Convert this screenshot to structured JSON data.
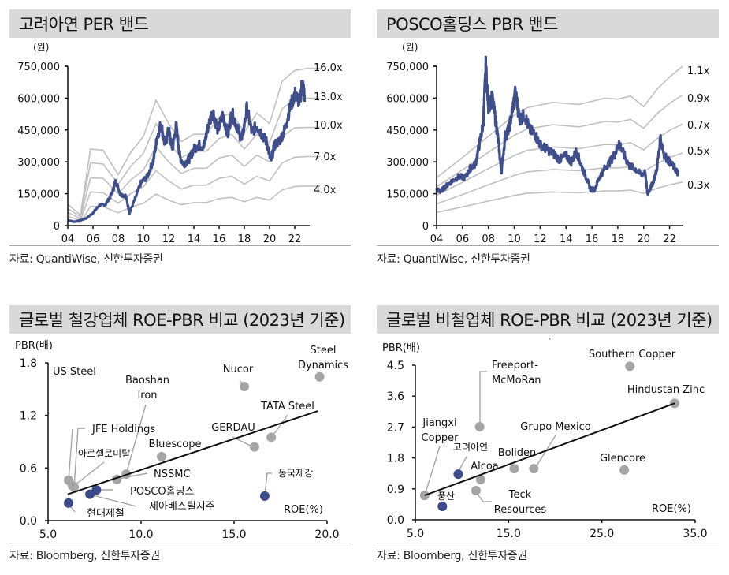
{
  "colors": {
    "price": "#3f4f8b",
    "band": "#c0c0c0",
    "gray_dot": "#a5a5a5",
    "navy_dot": "#3a4a8a",
    "title_bg": "#d9d9d9"
  },
  "chart_data": [
    {
      "type": "line",
      "title": "고려아연 PER 밴드",
      "unit_label": "(원)",
      "source": "자료: QuantiWise, 신한투자증권",
      "ylim": [
        0,
        750000
      ],
      "yticks": [
        0,
        150000,
        300000,
        450000,
        600000,
        750000
      ],
      "ytick_labels": [
        "0",
        "150,000",
        "300,000",
        "450,000",
        "600,000",
        "750,000"
      ],
      "xlim": [
        2004,
        2024
      ],
      "xticks": [
        2004,
        2006,
        2008,
        2010,
        2012,
        2014,
        2016,
        2018,
        2020,
        2022
      ],
      "xtick_labels": [
        "04",
        "06",
        "08",
        "10",
        "12",
        "14",
        "16",
        "18",
        "20",
        "22"
      ],
      "bands": [
        {
          "name": "16.0x",
          "x": [
            2004,
            2005,
            2005.8,
            2006.8,
            2008,
            2009,
            2010,
            2011,
            2012,
            2013,
            2014,
            2015,
            2016,
            2017,
            2018,
            2019,
            2020,
            2021,
            2022,
            2023,
            2024
          ],
          "y": [
            100000,
            50000,
            360000,
            355000,
            240000,
            345000,
            420000,
            590000,
            480000,
            395000,
            430000,
            430000,
            510000,
            530000,
            440000,
            530000,
            480000,
            680000,
            730000,
            740000,
            740000
          ]
        },
        {
          "name": "13.0x",
          "x": [
            2004,
            2005,
            2005.8,
            2006.8,
            2008,
            2009,
            2010,
            2011,
            2012,
            2013,
            2014,
            2015,
            2016,
            2017,
            2018,
            2019,
            2020,
            2021,
            2022,
            2023,
            2024
          ],
          "y": [
            80000,
            42000,
            295000,
            290000,
            195000,
            280000,
            340000,
            480000,
            390000,
            320000,
            350000,
            350000,
            410000,
            430000,
            360000,
            430000,
            390000,
            550000,
            595000,
            600000,
            600000
          ]
        },
        {
          "name": "10.0x",
          "x": [
            2004,
            2005,
            2005.8,
            2006.8,
            2008,
            2009,
            2010,
            2011,
            2012,
            2013,
            2014,
            2015,
            2016,
            2017,
            2018,
            2019,
            2020,
            2021,
            2022,
            2023,
            2024
          ],
          "y": [
            62000,
            33000,
            225000,
            222000,
            150000,
            215000,
            262000,
            370000,
            300000,
            245000,
            270000,
            270000,
            318000,
            332000,
            278000,
            332000,
            300000,
            420000,
            460000,
            462000,
            462000
          ]
        },
        {
          "name": "7.0x",
          "x": [
            2004,
            2005,
            2005.8,
            2006.8,
            2008,
            2009,
            2010,
            2011,
            2012,
            2013,
            2014,
            2015,
            2016,
            2017,
            2018,
            2019,
            2020,
            2021,
            2022,
            2023,
            2024
          ],
          "y": [
            44000,
            23000,
            158000,
            155000,
            105000,
            150000,
            183000,
            258000,
            210000,
            172000,
            190000,
            190000,
            222000,
            232000,
            195000,
            232000,
            210000,
            295000,
            322000,
            325000,
            325000
          ]
        },
        {
          "name": "4.0x",
          "x": [
            2004,
            2005,
            2005.8,
            2006.8,
            2008,
            2009,
            2010,
            2011,
            2012,
            2013,
            2014,
            2015,
            2016,
            2017,
            2018,
            2019,
            2020,
            2021,
            2022,
            2023,
            2024
          ],
          "y": [
            25000,
            13000,
            90000,
            89000,
            60000,
            86000,
            105000,
            148000,
            120000,
            98000,
            108000,
            108000,
            127000,
            133000,
            112000,
            133000,
            120000,
            168000,
            184000,
            186000,
            186000
          ]
        }
      ],
      "price": {
        "name": "주가",
        "x": [
          2004,
          2004.5,
          2005,
          2005.5,
          2006,
          2006.5,
          2007,
          2007.5,
          2007.8,
          2008.2,
          2008.6,
          2008.9,
          2009.3,
          2009.8,
          2010.3,
          2010.8,
          2011.1,
          2011.4,
          2011.7,
          2012.0,
          2012.3,
          2012.6,
          2012.9,
          2013.2,
          2013.6,
          2014.0,
          2014.4,
          2014.8,
          2015.1,
          2015.5,
          2015.9,
          2016.3,
          2016.7,
          2017.0,
          2017.4,
          2017.8,
          2018.2,
          2018.6,
          2019.0,
          2019.4,
          2019.8,
          2020.1,
          2020.4,
          2020.8,
          2021.2,
          2021.6,
          2022.0,
          2022.4,
          2022.6,
          2022.8
        ],
        "y": [
          25000,
          18000,
          25000,
          35000,
          60000,
          95000,
          100000,
          150000,
          210000,
          145000,
          140000,
          60000,
          120000,
          200000,
          230000,
          310000,
          420000,
          480000,
          380000,
          450000,
          360000,
          470000,
          320000,
          290000,
          310000,
          360000,
          380000,
          370000,
          460000,
          540000,
          450000,
          520000,
          430000,
          530000,
          470000,
          400000,
          550000,
          440000,
          470000,
          430000,
          390000,
          300000,
          380000,
          400000,
          450000,
          550000,
          620000,
          580000,
          680000,
          600000
        ]
      },
      "band_labels": [
        "16.0x",
        "13.0x",
        "10.0x",
        "7.0x",
        "4.0x"
      ]
    },
    {
      "type": "line",
      "title": "POSCO홀딩스 PBR 밴드",
      "unit_label": "(원)",
      "source": "자료: QuantiWise, 신한투자증권",
      "ylim": [
        0,
        750000
      ],
      "yticks": [
        0,
        150000,
        300000,
        450000,
        600000,
        750000
      ],
      "ytick_labels": [
        "0",
        "150,000",
        "300,000",
        "450,000",
        "600,000",
        "750,000"
      ],
      "xlim": [
        2004,
        2023
      ],
      "xticks": [
        2004,
        2006,
        2008,
        2010,
        2012,
        2014,
        2016,
        2018,
        2020,
        2022
      ],
      "xtick_labels": [
        "04",
        "06",
        "08",
        "10",
        "12",
        "14",
        "16",
        "18",
        "20",
        "22"
      ],
      "bands": [
        {
          "name": "1.1x",
          "x": [
            2004,
            2006,
            2008,
            2010,
            2011,
            2013,
            2015,
            2017,
            2018,
            2019,
            2020,
            2021,
            2022,
            2023
          ],
          "y": [
            225000,
            320000,
            420000,
            520000,
            555000,
            580000,
            570000,
            600000,
            595000,
            610000,
            560000,
            640000,
            700000,
            750000
          ]
        },
        {
          "name": "0.9x",
          "x": [
            2004,
            2006,
            2008,
            2010,
            2011,
            2013,
            2015,
            2017,
            2018,
            2019,
            2020,
            2021,
            2022,
            2023
          ],
          "y": [
            183000,
            262000,
            345000,
            425000,
            455000,
            475000,
            465000,
            490000,
            487000,
            500000,
            458000,
            525000,
            575000,
            615000
          ]
        },
        {
          "name": "0.7x",
          "x": [
            2004,
            2006,
            2008,
            2010,
            2011,
            2013,
            2015,
            2017,
            2018,
            2019,
            2020,
            2021,
            2022,
            2023
          ],
          "y": [
            143000,
            204000,
            268000,
            330000,
            354000,
            370000,
            362000,
            382000,
            380000,
            390000,
            356000,
            408000,
            448000,
            478000
          ]
        },
        {
          "name": "0.5x",
          "x": [
            2004,
            2006,
            2008,
            2010,
            2011,
            2013,
            2015,
            2017,
            2018,
            2019,
            2020,
            2021,
            2022,
            2023
          ],
          "y": [
            102000,
            146000,
            192000,
            236000,
            253000,
            264000,
            258000,
            272000,
            271000,
            278000,
            254000,
            291000,
            320000,
            342000
          ]
        },
        {
          "name": "0.3x",
          "x": [
            2004,
            2006,
            2008,
            2010,
            2011,
            2013,
            2015,
            2017,
            2018,
            2019,
            2020,
            2021,
            2022,
            2023
          ],
          "y": [
            62000,
            88000,
            115000,
            142000,
            152000,
            158000,
            155000,
            163000,
            163000,
            167000,
            152000,
            175000,
            192000,
            205000
          ]
        }
      ],
      "price": {
        "name": "주가",
        "x": [
          2004,
          2004.3,
          2004.7,
          2005.2,
          2005.7,
          2006.2,
          2006.6,
          2007.0,
          2007.3,
          2007.6,
          2007.8,
          2008.0,
          2008.3,
          2008.6,
          2008.8,
          2009.0,
          2009.3,
          2009.6,
          2009.9,
          2010.1,
          2010.4,
          2010.8,
          2011.2,
          2011.6,
          2012.0,
          2012.5,
          2013.0,
          2013.5,
          2014.0,
          2014.4,
          2014.8,
          2015.2,
          2015.6,
          2015.9,
          2016.2,
          2016.6,
          2017.0,
          2017.4,
          2017.8,
          2018.1,
          2018.5,
          2018.9,
          2019.3,
          2019.8,
          2020.1,
          2020.3,
          2020.7,
          2021.0,
          2021.3,
          2021.6,
          2022.0,
          2022.4,
          2022.7
        ],
        "y": [
          170000,
          160000,
          185000,
          210000,
          230000,
          225000,
          270000,
          290000,
          380000,
          480000,
          750000,
          560000,
          600000,
          480000,
          380000,
          250000,
          420000,
          460000,
          560000,
          630000,
          500000,
          520000,
          450000,
          430000,
          380000,
          360000,
          340000,
          310000,
          330000,
          300000,
          350000,
          280000,
          220000,
          170000,
          170000,
          230000,
          270000,
          300000,
          340000,
          390000,
          330000,
          280000,
          270000,
          240000,
          250000,
          150000,
          200000,
          260000,
          410000,
          330000,
          300000,
          270000,
          240000
        ]
      },
      "band_labels": [
        "1.1x",
        "0.9x",
        "0.7x",
        "0.5x",
        "0.3x"
      ]
    },
    {
      "type": "scatter",
      "title": "글로벌 철강업체 ROE-PBR 비교 (2023년 기준)",
      "ylabel": "PBR(배)",
      "xlabel": "ROE(%)",
      "source": "자료: Bloomberg, 신한투자증권",
      "xlim": [
        5.0,
        20.0
      ],
      "ylim": [
        0.0,
        1.8
      ],
      "xticks": [
        5.0,
        10.0,
        15.0,
        20.0
      ],
      "xtick_labels": [
        "5.0",
        "10.0",
        "15.0",
        "20.0"
      ],
      "yticks": [
        0.0,
        0.6,
        1.2,
        1.8
      ],
      "ytick_labels": [
        "0.0",
        "0.6",
        "1.2",
        "1.8"
      ],
      "points": [
        {
          "name": "US Steel",
          "x": 6.1,
          "y": 0.46,
          "group": "global"
        },
        {
          "name": "JFE Holdings",
          "x": 6.4,
          "y": 0.38,
          "group": "global"
        },
        {
          "name": "아르셀로미탈",
          "x": 6.3,
          "y": 0.4,
          "group": "global"
        },
        {
          "name": "현대제철",
          "x": 6.1,
          "y": 0.2,
          "group": "korea"
        },
        {
          "name": "세아베스틸지주",
          "x": 7.25,
          "y": 0.3,
          "group": "korea"
        },
        {
          "name": "POSCO홀딩스",
          "x": 7.6,
          "y": 0.35,
          "group": "korea"
        },
        {
          "name": "NSSMC",
          "x": 8.7,
          "y": 0.47,
          "group": "global"
        },
        {
          "name": "Baoshan Iron",
          "x": 9.2,
          "y": 0.53,
          "group": "global"
        },
        {
          "name": "Bluescope",
          "x": 11.1,
          "y": 0.73,
          "group": "global"
        },
        {
          "name": "GERDAU",
          "x": 16.1,
          "y": 0.84,
          "group": "global"
        },
        {
          "name": "TATA Steel",
          "x": 17.0,
          "y": 0.95,
          "group": "global"
        },
        {
          "name": "동국제강",
          "x": 16.65,
          "y": 0.28,
          "group": "korea"
        },
        {
          "name": "Nucor",
          "x": 15.55,
          "y": 1.53,
          "group": "global"
        },
        {
          "name": "Steel Dynamics",
          "x": 19.6,
          "y": 1.64,
          "group": "global"
        }
      ],
      "trendline": {
        "x": [
          6.05,
          19.5
        ],
        "y": [
          0.3,
          1.25
        ]
      }
    },
    {
      "type": "scatter",
      "title": "글로벌 비철업체 ROE-PBR 비교 (2023년 기준)",
      "ylabel": "PBR(배)",
      "xlabel": "ROE(%)",
      "source": "자료: Bloomberg, 신한투자증권",
      "xlim": [
        5.0,
        35.0
      ],
      "ylim": [
        0.0,
        4.5
      ],
      "xticks": [
        5.0,
        15.0,
        25.0,
        35.0
      ],
      "xtick_labels": [
        "5.0",
        "15.0",
        "25.0",
        "35.0"
      ],
      "yticks": [
        0.0,
        0.9,
        1.8,
        2.7,
        3.6,
        4.5
      ],
      "ytick_labels": [
        "0.0",
        "0.9",
        "1.8",
        "2.7",
        "3.6",
        "4.5"
      ],
      "points": [
        {
          "name": "Jiangxi Copper",
          "x": 6.0,
          "y": 0.71,
          "group": "global"
        },
        {
          "name": "풍산",
          "x": 7.9,
          "y": 0.39,
          "group": "korea"
        },
        {
          "name": "고려아연",
          "x": 9.6,
          "y": 1.33,
          "group": "korea"
        },
        {
          "name": "Freeport-McMoRan",
          "x": 11.9,
          "y": 2.71,
          "group": "global"
        },
        {
          "name": "Alcoa",
          "x": 12.0,
          "y": 1.17,
          "group": "global"
        },
        {
          "name": "Teck Resources",
          "x": 11.5,
          "y": 0.85,
          "group": "global"
        },
        {
          "name": "Boliden",
          "x": 15.6,
          "y": 1.49,
          "group": "global"
        },
        {
          "name": "Grupo Mexico",
          "x": 17.7,
          "y": 1.49,
          "group": "global"
        },
        {
          "name": "Glencore",
          "x": 27.4,
          "y": 1.45,
          "group": "global"
        },
        {
          "name": "Southern Copper",
          "x": 28.0,
          "y": 4.47,
          "group": "global"
        },
        {
          "name": "Hindustan Zinc",
          "x": 32.8,
          "y": 3.39,
          "group": "global"
        }
      ],
      "trendline": {
        "x": [
          6.0,
          32.8
        ],
        "y": [
          0.71,
          3.39
        ]
      }
    }
  ],
  "labels": {
    "steel": {
      "us_steel": "US Steel",
      "baoshan_1": "Baoshan",
      "baoshan_2": "Iron",
      "jfe": "JFE Holdings",
      "arcelor": "아르셀로미탈",
      "bluescope": "Bluescope",
      "nssmc": "NSSMC",
      "posco": "POSCO홀딩스",
      "seah": "세아베스틸지주",
      "hyundai": "현대제철",
      "nucor": "Nucor",
      "sd_1": "Steel",
      "sd_2": "Dynamics",
      "tata": "TATA Steel",
      "gerdau": "GERDAU",
      "dongkuk": "동국제강"
    },
    "nonferrous": {
      "jx_1": "Jiangxi",
      "jx_2": "Copper",
      "fcx_1": "Freeport-",
      "fcx_2": "McMoRan",
      "kz": "고려아연",
      "ps": "풍산",
      "alcoa": "Alcoa",
      "boliden": "Boliden",
      "grupo": "Grupo Mexico",
      "teck_1": "Teck",
      "teck_2": "Resources",
      "glencore": "Glencore",
      "sc": "Southern Copper",
      "hz": "Hindustan Zinc",
      "stray": "`"
    }
  }
}
